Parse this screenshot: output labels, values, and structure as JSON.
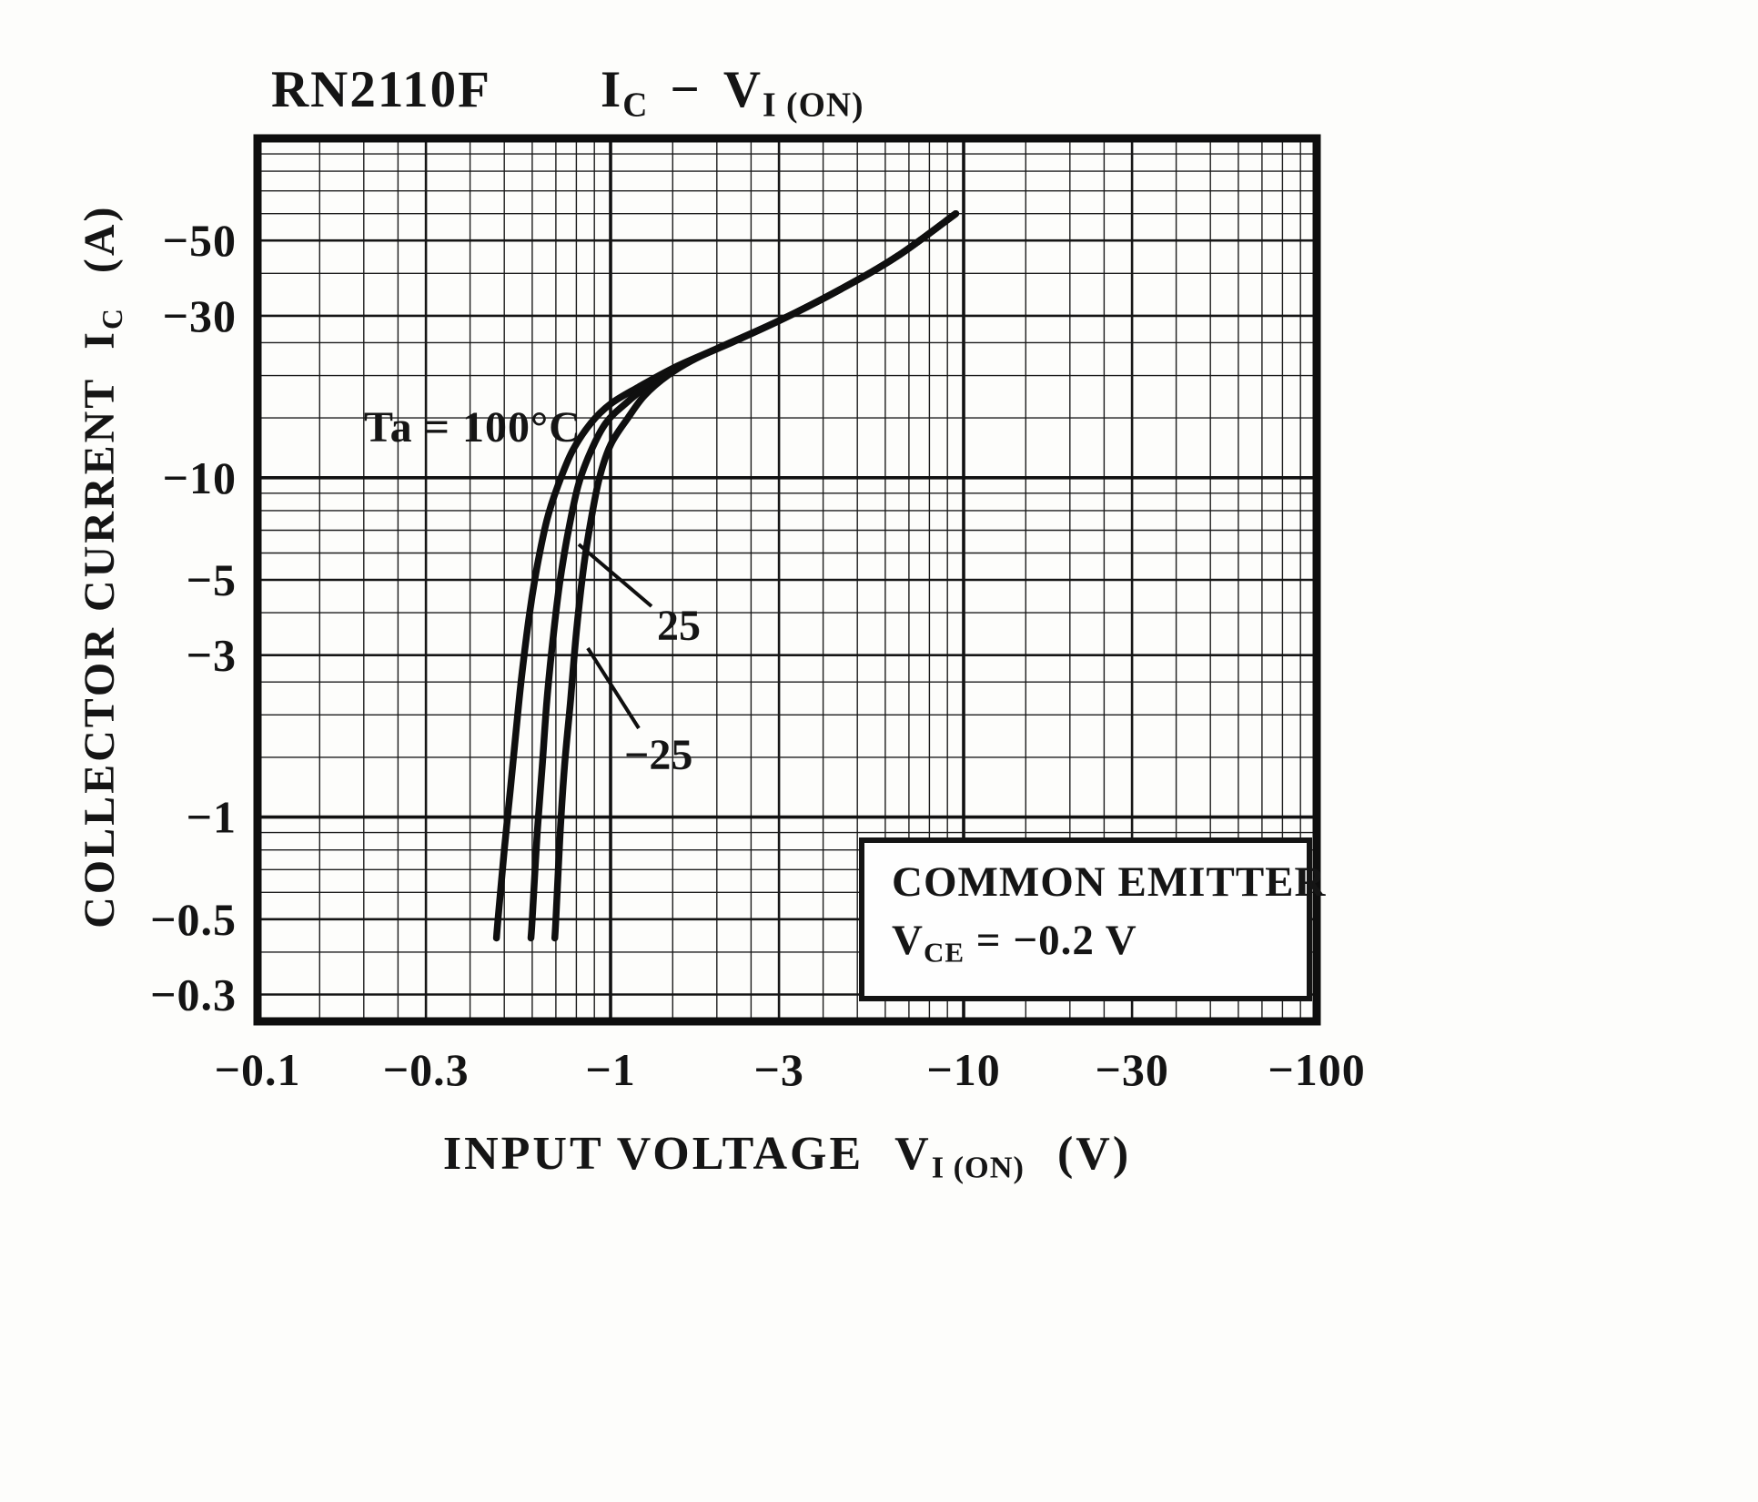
{
  "title": {
    "model": "RN2110F",
    "y_symbol": "I",
    "y_symbol_sub": "C",
    "dash": "−",
    "x_symbol": "V",
    "x_symbol_sub": "I (ON)"
  },
  "axes": {
    "y": {
      "title": "COLLECTOR CURRENT",
      "symbol": "I",
      "symbol_sub": "C",
      "unit": "(A)"
    },
    "x": {
      "title": "INPUT VOLTAGE",
      "symbol": "V",
      "symbol_sub": "I (ON)",
      "unit": "(V)"
    }
  },
  "annotations": {
    "temp_label": "Ta = 100°C",
    "curve_25": "25",
    "curve_minus_25": "−25"
  },
  "inset": {
    "line1": "COMMON EMITTER",
    "symbol": "V",
    "symbol_sub": "CE",
    "value": " = −0.2 V"
  },
  "chart_data": {
    "type": "line",
    "title": "RN2110F  IC − VI(ON)",
    "xlabel": "INPUT VOLTAGE VI(ON) (V)",
    "ylabel": "COLLECTOR CURRENT IC (A)",
    "x_scale": "log (magnitude of negative values)",
    "y_scale": "log (magnitude of negative values)",
    "x_range": [
      -0.1,
      -100
    ],
    "y_range": [
      -0.3,
      -50
    ],
    "grid": true,
    "conditions": [
      "COMMON EMITTER",
      "VCE = −0.2 V"
    ],
    "x_ticks": [
      {
        "value": -0.1,
        "label": "−0.1"
      },
      {
        "value": -0.3,
        "label": "−0.3"
      },
      {
        "value": -1,
        "label": "−1"
      },
      {
        "value": -3,
        "label": "−3"
      },
      {
        "value": -10,
        "label": "−10"
      },
      {
        "value": -30,
        "label": "−30"
      },
      {
        "value": -100,
        "label": "−100"
      }
    ],
    "y_ticks": [
      {
        "value": -50,
        "label": "−50"
      },
      {
        "value": -30,
        "label": "−30"
      },
      {
        "value": -10,
        "label": "−10"
      },
      {
        "value": -5,
        "label": "−5"
      },
      {
        "value": -3,
        "label": "−3"
      },
      {
        "value": -1,
        "label": "−1"
      },
      {
        "value": -0.5,
        "label": "−0.5"
      },
      {
        "value": -0.3,
        "label": "−0.3"
      }
    ],
    "series": [
      {
        "name": "Ta = 100°C",
        "points": [
          [
            -0.475,
            -0.44
          ],
          [
            -0.48,
            -0.5
          ],
          [
            -0.5,
            -0.8
          ],
          [
            -0.52,
            -1.2
          ],
          [
            -0.54,
            -1.8
          ],
          [
            -0.56,
            -2.6
          ],
          [
            -0.59,
            -4
          ],
          [
            -0.62,
            -5.5
          ],
          [
            -0.66,
            -7.5
          ],
          [
            -0.71,
            -9.5
          ],
          [
            -0.78,
            -12
          ],
          [
            -0.88,
            -14.5
          ],
          [
            -1.0,
            -16.5
          ],
          [
            -1.2,
            -18.5
          ],
          [
            -1.5,
            -21
          ],
          [
            -2.0,
            -24
          ],
          [
            -3.0,
            -29
          ],
          [
            -4.5,
            -36
          ],
          [
            -6.5,
            -45
          ],
          [
            -9.5,
            -60
          ]
        ]
      },
      {
        "name": "Ta = 25°C",
        "points": [
          [
            -0.595,
            -0.44
          ],
          [
            -0.6,
            -0.5
          ],
          [
            -0.62,
            -0.9
          ],
          [
            -0.64,
            -1.4
          ],
          [
            -0.66,
            -2.2
          ],
          [
            -0.69,
            -3.5
          ],
          [
            -0.72,
            -5
          ],
          [
            -0.76,
            -7
          ],
          [
            -0.81,
            -9.5
          ],
          [
            -0.88,
            -12
          ],
          [
            -0.97,
            -14.5
          ],
          [
            -1.1,
            -16.5
          ],
          [
            -1.3,
            -19
          ],
          [
            -1.5,
            -21
          ],
          [
            -2.0,
            -24
          ],
          [
            -3.0,
            -29
          ],
          [
            -4.5,
            -36
          ],
          [
            -6.5,
            -45
          ],
          [
            -9.5,
            -60
          ]
        ]
      },
      {
        "name": "Ta = −25°C",
        "points": [
          [
            -0.695,
            -0.44
          ],
          [
            -0.7,
            -0.5
          ],
          [
            -0.72,
            -0.9
          ],
          [
            -0.74,
            -1.4
          ],
          [
            -0.77,
            -2.2
          ],
          [
            -0.8,
            -3.5
          ],
          [
            -0.84,
            -5.5
          ],
          [
            -0.88,
            -7.5
          ],
          [
            -0.93,
            -10
          ],
          [
            -1.0,
            -12.5
          ],
          [
            -1.12,
            -15
          ],
          [
            -1.25,
            -17.5
          ],
          [
            -1.45,
            -20
          ],
          [
            -1.75,
            -22.5
          ],
          [
            -2.2,
            -25
          ],
          [
            -3.0,
            -29
          ],
          [
            -4.5,
            -36
          ],
          [
            -6.5,
            -45
          ],
          [
            -9.5,
            -60
          ]
        ]
      }
    ]
  }
}
